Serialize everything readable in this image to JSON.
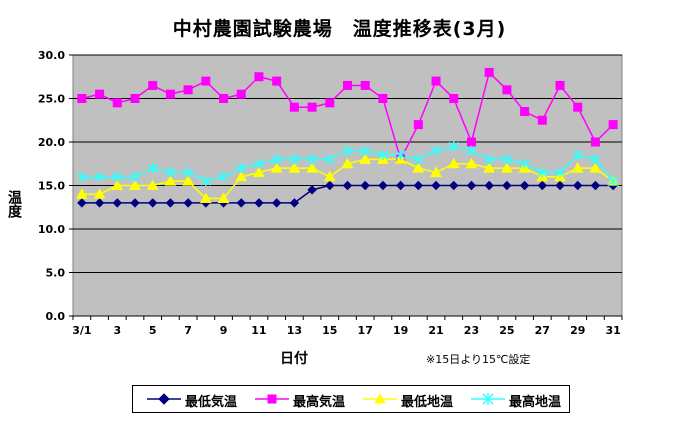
{
  "chart_data": {
    "type": "line",
    "title": "中村農園試験農場　温度推移表(3月)",
    "xlabel": "日付",
    "ylabel": "温度",
    "note": "※15日より15℃設定",
    "ylim": [
      0,
      30
    ],
    "yticks": [
      "0.0",
      "5.0",
      "10.0",
      "15.0",
      "20.0",
      "25.0",
      "30.0"
    ],
    "x": [
      "3/1",
      "2",
      "3",
      "4",
      "5",
      "6",
      "7",
      "8",
      "9",
      "10",
      "11",
      "12",
      "13",
      "14",
      "15",
      "16",
      "17",
      "18",
      "19",
      "20",
      "21",
      "22",
      "23",
      "24",
      "25",
      "26",
      "27",
      "28",
      "29",
      "30",
      "31"
    ],
    "xtick_labels": [
      "3/1",
      "",
      "3",
      "",
      "5",
      "",
      "7",
      "",
      "9",
      "",
      "11",
      "",
      "13",
      "",
      "15",
      "",
      "17",
      "",
      "19",
      "",
      "21",
      "",
      "23",
      "",
      "25",
      "",
      "27",
      "",
      "29",
      "",
      "31"
    ],
    "grid": "horizontal",
    "plot_background": "#c0c0c0",
    "legend_position": "bottom",
    "series": [
      {
        "name": "最低気温",
        "color": "#000080",
        "marker": "diamond",
        "values": [
          13,
          13,
          13,
          13,
          13,
          13,
          13,
          13,
          13,
          13,
          13,
          13,
          13,
          14.5,
          15,
          15,
          15,
          15,
          15,
          15,
          15,
          15,
          15,
          15,
          15,
          15,
          15,
          15,
          15,
          15,
          15
        ]
      },
      {
        "name": "最高気温",
        "color": "#ff00ff",
        "marker": "square",
        "values": [
          25,
          25.5,
          24.5,
          25,
          26.5,
          25.5,
          26,
          27,
          25,
          25.5,
          27.5,
          27,
          24,
          24,
          24.5,
          26.5,
          26.5,
          25,
          18,
          22,
          27,
          25,
          20,
          28,
          26,
          23.5,
          22.5,
          26.5,
          24,
          20,
          22
        ]
      },
      {
        "name": "最低地温",
        "color": "#ffff00",
        "marker": "triangle",
        "values": [
          14,
          14,
          15,
          15,
          15,
          15.5,
          15.5,
          13.5,
          13.5,
          16,
          16.5,
          17,
          17,
          17,
          16,
          17.5,
          18,
          18,
          18,
          17,
          16.5,
          17.5,
          17.5,
          17,
          17,
          17,
          16,
          16,
          17,
          17,
          15.5
        ]
      },
      {
        "name": "最高地温",
        "color": "#33ffff",
        "marker": "star",
        "values": [
          16,
          16,
          16,
          16,
          17,
          16.5,
          16.5,
          15.5,
          16,
          17,
          17.5,
          18,
          18,
          18,
          18,
          19,
          19,
          18.5,
          18.5,
          18,
          19,
          19.5,
          19,
          18,
          18,
          17.5,
          16.5,
          16.5,
          18.5,
          18,
          15.5
        ]
      }
    ]
  }
}
